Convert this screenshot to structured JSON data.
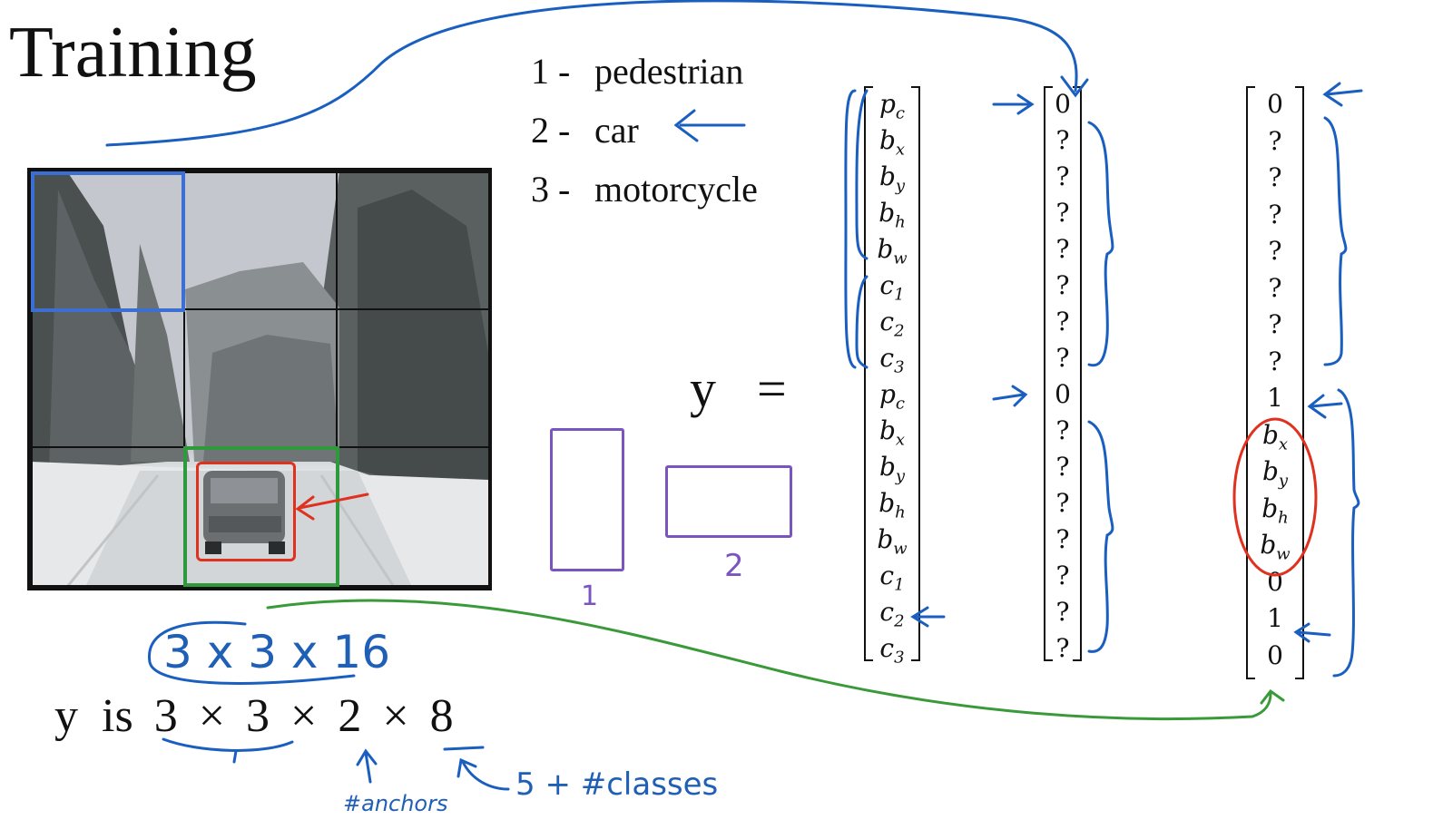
{
  "title": "Training",
  "classes": [
    {
      "num": "1 -",
      "name": "pedestrian"
    },
    {
      "num": "2 -",
      "name": "car"
    },
    {
      "num": "3 -",
      "name": "motorcycle"
    }
  ],
  "y_label": "y",
  "equals": "=",
  "vector_labels": [
    "p_c",
    "b_x",
    "b_y",
    "b_h",
    "b_w",
    "c_1",
    "c_2",
    "c_3",
    "p_c",
    "b_x",
    "b_y",
    "b_h",
    "b_w",
    "c_1",
    "c_2",
    "c_3"
  ],
  "vector_pedestrian": [
    "0",
    "?",
    "?",
    "?",
    "?",
    "?",
    "?",
    "?",
    "0",
    "?",
    "?",
    "?",
    "?",
    "?",
    "?",
    "?"
  ],
  "vector_car": [
    "0",
    "?",
    "?",
    "?",
    "?",
    "?",
    "?",
    "?",
    "1",
    "b_x",
    "b_y",
    "b_h",
    "b_w",
    "0",
    "1",
    "0"
  ],
  "anchor_box_labels": [
    "1",
    "2"
  ],
  "shape_text": {
    "prefix": "y  is",
    "d1": "3",
    "x1": "×",
    "d2": "3",
    "x2": "×",
    "d3": "2",
    "x3": "×",
    "d4": "8"
  },
  "annotations": {
    "grid_shape": "3 x 3 x 16",
    "anchors": "#anchors",
    "classes_formula": "5 + #classes"
  },
  "colors": {
    "blue_ink": "#1a5fc0",
    "green_ink": "#3a9a3a",
    "red_ink": "#e0301e",
    "purple_ink": "#7a55c0",
    "blue_cell": "#3b6fd4",
    "green_cell": "#2e9a3c"
  }
}
